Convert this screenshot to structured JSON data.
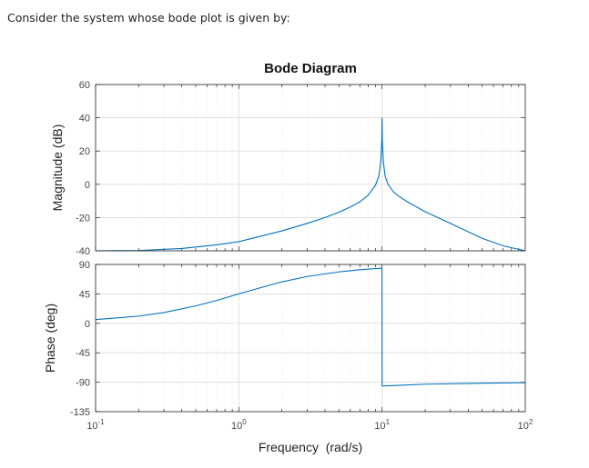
{
  "intro_text": "Consider the system whose bode plot is given by:",
  "chart_data": {
    "type": "line",
    "title": "Bode Diagram",
    "xlabel": "Frequency  (rad/s)",
    "xscale": "log",
    "xlim": [
      0.1,
      100
    ],
    "x_ticks": [
      {
        "base": "10",
        "exp": "-1"
      },
      {
        "base": "10",
        "exp": "0"
      },
      {
        "base": "10",
        "exp": "1"
      },
      {
        "base": "10",
        "exp": "2"
      }
    ],
    "grid": true,
    "line_color": "#0072BD",
    "subplots": [
      {
        "name": "magnitude",
        "ylabel": "Magnitude (dB)",
        "ylim": [
          -40,
          60
        ],
        "yticks": [
          "60",
          "40",
          "20",
          "0",
          "-20",
          "-40"
        ],
        "points": [
          [
            0.1,
            -40
          ],
          [
            0.2,
            -39.8
          ],
          [
            0.4,
            -38.6
          ],
          [
            0.7,
            -36.4
          ],
          [
            1,
            -34.5
          ],
          [
            2,
            -28
          ],
          [
            3,
            -23.5
          ],
          [
            4,
            -20
          ],
          [
            5,
            -16.8
          ],
          [
            6,
            -13.7
          ],
          [
            7,
            -10.5
          ],
          [
            8,
            -6.6
          ],
          [
            9,
            -0.5
          ],
          [
            9.5,
            5
          ],
          [
            9.8,
            14
          ],
          [
            9.95,
            26
          ],
          [
            10,
            40
          ],
          [
            10.05,
            26
          ],
          [
            10.2,
            14
          ],
          [
            10.5,
            5
          ],
          [
            11,
            0
          ],
          [
            12,
            -4.5
          ],
          [
            13,
            -7
          ],
          [
            15,
            -10.5
          ],
          [
            20,
            -16.5
          ],
          [
            30,
            -23.5
          ],
          [
            50,
            -32.5
          ],
          [
            70,
            -37
          ],
          [
            100,
            -40
          ]
        ]
      },
      {
        "name": "phase",
        "ylabel": "Phase (deg)",
        "ylim": [
          -135,
          90
        ],
        "yticks": [
          "90",
          "45",
          "0",
          "-45",
          "-90",
          "-135"
        ],
        "points": [
          [
            0.1,
            5.7
          ],
          [
            0.2,
            11
          ],
          [
            0.3,
            16.5
          ],
          [
            0.5,
            26.6
          ],
          [
            0.7,
            35
          ],
          [
            1,
            45
          ],
          [
            1.5,
            56
          ],
          [
            2,
            63.4
          ],
          [
            3,
            71.6
          ],
          [
            5,
            78.7
          ],
          [
            7,
            81.9
          ],
          [
            9,
            83.7
          ],
          [
            9.99,
            84.3
          ],
          [
            10.01,
            -95.7
          ],
          [
            12,
            -95.2
          ],
          [
            20,
            -93
          ],
          [
            50,
            -91.5
          ],
          [
            100,
            -90.6
          ]
        ]
      }
    ]
  }
}
